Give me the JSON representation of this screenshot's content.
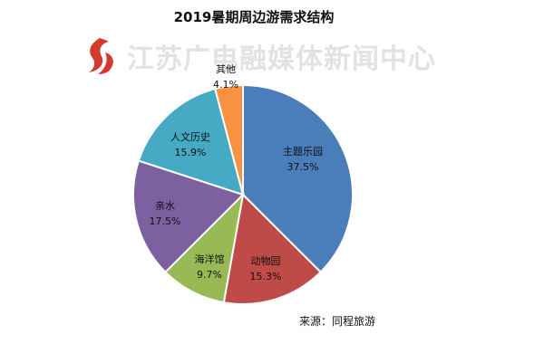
{
  "title": "2019暑期周边游需求结构",
  "watermark": {
    "text": "江苏广电融媒体新闻中心"
  },
  "source": "来源：同程旅游",
  "chart_data": {
    "type": "pie",
    "title": "2019暑期周边游需求结构",
    "slices": [
      {
        "label": "主题乐园",
        "value": 37.5,
        "display": "37.5%",
        "color": "#4A7EBB"
      },
      {
        "label": "动物园",
        "value": 15.3,
        "display": "15.3%",
        "color": "#BE4B48"
      },
      {
        "label": "海洋馆",
        "value": 9.7,
        "display": "9.7%",
        "color": "#98B954"
      },
      {
        "label": "亲水",
        "value": 17.5,
        "display": "17.5%",
        "color": "#7D60A0"
      },
      {
        "label": "人文历史",
        "value": 15.9,
        "display": "15.9%",
        "color": "#46AAC5"
      },
      {
        "label": "其他",
        "value": 4.1,
        "display": "4.1%",
        "color": "#F69240"
      }
    ],
    "start": "12 o'clock",
    "direction": "clockwise"
  }
}
